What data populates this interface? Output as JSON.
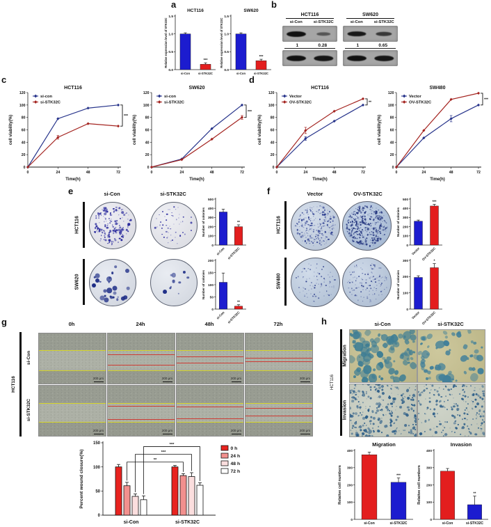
{
  "panels": {
    "a": {
      "letter": "a"
    },
    "b": {
      "letter": "b",
      "groups": [
        {
          "cell_line": "HCT116",
          "lanes": [
            "si-Con",
            "si-STK32C"
          ],
          "quant": [
            "1",
            "0.28"
          ],
          "intensities": [
            1,
            0.3
          ],
          "control_intensities": [
            1,
            0.95
          ]
        },
        {
          "cell_line": "SW620",
          "lanes": [
            "si-Con",
            "si-STK32C"
          ],
          "quant": [
            "1",
            "0.65"
          ],
          "intensities": [
            0.92,
            0.6
          ],
          "control_intensities": [
            1,
            0.95
          ]
        }
      ]
    },
    "c": {
      "letter": "c"
    },
    "d": {
      "letter": "d"
    },
    "e": {
      "letter": "e",
      "col_headers": [
        "si-Con",
        "si-STK32C"
      ],
      "rows": [
        "HCT116",
        "SW620"
      ],
      "dishes": [
        {
          "seed": 11,
          "count": 170,
          "min": 1.2,
          "max": 3.8,
          "bg": "#e6e6ee",
          "dot": "#2a2a9d"
        },
        {
          "seed": 22,
          "count": 55,
          "min": 1,
          "max": 3,
          "bg": "#e6e7ee",
          "dot": "#2a2a9d"
        },
        {
          "seed": 33,
          "count": 26,
          "min": 2.5,
          "max": 9,
          "bg": "#dbe0ea",
          "dot": "#1c2c85"
        },
        {
          "seed": 44,
          "count": 10,
          "min": 2,
          "max": 7,
          "bg": "#dde2eb",
          "dot": "#1c2c85"
        }
      ]
    },
    "f": {
      "letter": "f",
      "col_headers": [
        "Vector",
        "OV-STK32C"
      ],
      "rows": [
        "HCT116",
        "SW480"
      ],
      "dishes": [
        {
          "seed": 55,
          "count": 240,
          "min": 1,
          "max": 2.8,
          "bg": "#bfcde1",
          "dot": "#2b3d8f"
        },
        {
          "seed": 66,
          "count": 400,
          "min": 1,
          "max": 3,
          "bg": "#a9bedb",
          "dot": "#24367f"
        },
        {
          "seed": 77,
          "count": 90,
          "min": 0.8,
          "max": 2.2,
          "bg": "#b7c8de",
          "dot": "#33448f"
        },
        {
          "seed": 88,
          "count": 130,
          "min": 0.8,
          "max": 2.2,
          "bg": "#b4c5dc",
          "dot": "#33448f"
        }
      ]
    },
    "g": {
      "letter": "g",
      "col_headers": [
        "0h",
        "24h",
        "48h",
        "72h"
      ],
      "rows": [
        "si-Con",
        "si-STK32C"
      ],
      "cell_line": "HCT116",
      "scale_label": "200 μm",
      "images": [
        [
          {
            "yellow": [
              0.34,
              0.73
            ]
          },
          {
            "yellow": [
              0.34,
              0.73
            ],
            "red": [
              0.42,
              0.62
            ]
          },
          {
            "yellow": [
              0.34,
              0.73
            ],
            "red": [
              0.46,
              0.58
            ]
          },
          {
            "yellow": [
              0.34,
              0.73
            ],
            "red": [
              0.49,
              0.55
            ]
          }
        ],
        [
          {
            "yellow": [
              0.35,
              0.72
            ]
          },
          {
            "yellow": [
              0.35,
              0.72
            ],
            "red": [
              0.4,
              0.66
            ]
          },
          {
            "yellow": [
              0.35,
              0.72
            ],
            "red": [
              0.42,
              0.65
            ]
          },
          {
            "yellow": [
              0.35,
              0.72
            ],
            "red": [
              0.45,
              0.6
            ]
          }
        ]
      ]
    },
    "h": {
      "letter": "h",
      "col_headers": [
        "si-Con",
        "si-STK32C"
      ],
      "rows": [
        "Migration",
        "Invasion"
      ],
      "cell_line": "HCT116",
      "images": [
        {
          "seed": 101,
          "count": 90,
          "min": 3,
          "max": 13,
          "bg": "#c3bd8c",
          "dot": "#3f7e94"
        },
        {
          "seed": 102,
          "count": 55,
          "min": 3,
          "max": 12,
          "bg": "#c6c08f",
          "dot": "#41809a"
        },
        {
          "seed": 103,
          "count": 250,
          "min": 1.2,
          "max": 4.5,
          "bg": "#c6ccbf",
          "dot": "#2c5d88"
        },
        {
          "seed": 104,
          "count": 195,
          "min": 1,
          "max": 4,
          "bg": "#c8cec1",
          "dot": "#2c5d88"
        }
      ]
    }
  },
  "chart_data": [
    {
      "type": "bar",
      "title": "HCT116",
      "ylabel": "Relative expression level of STK32C",
      "categories": [
        "si-Con",
        "si-STK32C"
      ],
      "values": [
        1.0,
        0.15
      ],
      "errors": [
        0.03,
        0.04
      ],
      "ylim": [
        0,
        1.5
      ],
      "yticks": [
        "0.0",
        "0.5",
        "1.0",
        "1.5"
      ],
      "colors": [
        "#1c1ccf",
        "#e31e1e"
      ],
      "sig": "***",
      "sig_on": 1,
      "ml": 18,
      "ylabel_size": 4.2,
      "cat_size": 4.2,
      "title_size": 6.5
    },
    {
      "type": "bar",
      "title": "SW620",
      "ylabel": "Relative expression level of STK32C",
      "categories": [
        "si-Con",
        "si-STK32C"
      ],
      "values": [
        1.0,
        0.25
      ],
      "errors": [
        0.03,
        0.04
      ],
      "ylim": [
        0,
        1.5
      ],
      "yticks": [
        "0.0",
        "0.5",
        "1.0",
        "1.5"
      ],
      "colors": [
        "#1c1ccf",
        "#e31e1e"
      ],
      "sig": "***",
      "sig_on": 1,
      "ml": 18,
      "ylabel_size": 4.2,
      "cat_size": 4.2,
      "title_size": 6.5
    },
    {
      "type": "line",
      "title": "HCT116",
      "xlabel": "Time(h)",
      "ylabel": "cell viability(%)",
      "x": [
        0,
        24,
        48,
        72
      ],
      "ylim": [
        0,
        120
      ],
      "yticks": [
        0,
        20,
        40,
        60,
        80,
        100,
        120
      ],
      "series": [
        {
          "name": "si-con",
          "color": "#27348b",
          "values": [
            0,
            78,
            95,
            100
          ],
          "errors": [
            0,
            2,
            2,
            2
          ]
        },
        {
          "name": "si-STK32C",
          "color": "#a42420",
          "values": [
            0,
            48,
            70,
            66
          ],
          "errors": [
            0,
            3,
            2,
            2
          ]
        }
      ],
      "sig": "***"
    },
    {
      "type": "line",
      "title": "SW620",
      "xlabel": "Time(h)",
      "ylabel": "cell viability(%)",
      "x": [
        0,
        24,
        48,
        72
      ],
      "ylim": [
        0,
        120
      ],
      "yticks": [
        0,
        20,
        40,
        60,
        80,
        100,
        120
      ],
      "series": [
        {
          "name": "si-con",
          "color": "#27348b",
          "values": [
            0,
            13,
            62,
            100
          ],
          "errors": [
            0,
            2,
            2,
            2
          ]
        },
        {
          "name": "si-STK32C",
          "color": "#a42420",
          "values": [
            0,
            12,
            45,
            80
          ],
          "errors": [
            0,
            2,
            2,
            3
          ]
        }
      ],
      "sig": "***"
    },
    {
      "type": "line",
      "title": "HCT116",
      "xlabel": "Time(h)",
      "ylabel": "cell viability(%)",
      "x": [
        0,
        24,
        48,
        72
      ],
      "ylim": [
        0,
        120
      ],
      "yticks": [
        0,
        20,
        40,
        60,
        80,
        100,
        120
      ],
      "series": [
        {
          "name": "Vector",
          "color": "#27348b",
          "values": [
            0,
            46,
            74,
            100
          ],
          "errors": [
            0,
            3,
            2,
            2
          ]
        },
        {
          "name": "OV-STK32C",
          "color": "#a42420",
          "values": [
            0,
            59,
            90,
            110
          ],
          "errors": [
            0,
            5,
            2,
            2
          ]
        }
      ],
      "sig": "**"
    },
    {
      "type": "line",
      "title": "SW480",
      "xlabel": "Time(h)",
      "ylabel": "cell viability(%)",
      "x": [
        0,
        24,
        48,
        72
      ],
      "ylim": [
        0,
        120
      ],
      "yticks": [
        0,
        20,
        40,
        60,
        80,
        100,
        120
      ],
      "series": [
        {
          "name": "Vector",
          "color": "#27348b",
          "values": [
            0,
            47,
            78,
            100
          ],
          "errors": [
            0,
            2,
            5,
            2
          ]
        },
        {
          "name": "OV-STK32C",
          "color": "#a42420",
          "values": [
            0,
            59,
            109,
            119
          ],
          "errors": [
            0,
            2,
            2,
            2
          ]
        }
      ],
      "sig": "***"
    },
    {
      "type": "bar",
      "ylabel": "Number of colonies",
      "categories": [
        "si-Con",
        "si-STK32C"
      ],
      "values": [
        360,
        200
      ],
      "errors": [
        30,
        20
      ],
      "ylim": [
        0,
        500
      ],
      "yticks": [
        0,
        100,
        200,
        300,
        400,
        500
      ],
      "colors": [
        "#1c1ccf",
        "#e31e1e"
      ],
      "sig": "**",
      "sig_on": 1,
      "ml": 22,
      "ylabel_size": 4.5,
      "rot": true,
      "cat_size": 4.5
    },
    {
      "type": "bar",
      "ylabel": "Number of colonies",
      "categories": [
        "si-Con",
        "si-STK32C"
      ],
      "values": [
        110,
        12
      ],
      "errors": [
        38,
        6
      ],
      "ylim": [
        0,
        200
      ],
      "yticks": [
        0,
        50,
        100,
        150,
        200
      ],
      "colors": [
        "#1c1ccf",
        "#e31e1e"
      ],
      "sig": "**",
      "sig_on": 1,
      "ml": 22,
      "ylabel_size": 4.5,
      "rot": true,
      "cat_size": 4.5
    },
    {
      "type": "bar",
      "ylabel": "Number of colonies",
      "categories": [
        "Vector",
        "OV-STK32C"
      ],
      "values": [
        260,
        425
      ],
      "errors": [
        12,
        18
      ],
      "ylim": [
        0,
        500
      ],
      "yticks": [
        0,
        100,
        200,
        300,
        400,
        500
      ],
      "colors": [
        "#1c1ccf",
        "#e31e1e"
      ],
      "sig": "***",
      "sig_on": 1,
      "ml": 22,
      "ylabel_size": 4.5,
      "rot": true,
      "cat_size": 4.5
    },
    {
      "type": "bar",
      "ylabel": "Number of colonies",
      "categories": [
        "Vector",
        "OV-STK32C"
      ],
      "values": [
        195,
        255
      ],
      "errors": [
        10,
        25
      ],
      "ylim": [
        0,
        300
      ],
      "yticks": [
        0,
        100,
        200,
        300
      ],
      "colors": [
        "#1c1ccf",
        "#e31e1e"
      ],
      "sig": "*",
      "sig_on": 1,
      "ml": 22,
      "ylabel_size": 4.5,
      "rot": true,
      "cat_size": 4.5
    },
    {
      "type": "grouped_bar",
      "ylabel": "Percent wound closure(%)",
      "ylim": [
        0,
        150
      ],
      "yticks": [
        0,
        50,
        100,
        150
      ],
      "groups": [
        "si-Con",
        "si-STK32C"
      ],
      "series_labels": [
        "0 h",
        "24 h",
        "48 h",
        "72 h"
      ],
      "colors": [
        "#e8231f",
        "#f2908e",
        "#fbdede",
        "#ffffff"
      ],
      "values": [
        [
          100,
          61,
          39,
          32
        ],
        [
          100,
          82,
          80,
          62
        ]
      ],
      "errors": [
        [
          5,
          7,
          5,
          8
        ],
        [
          3,
          4,
          8,
          5
        ]
      ],
      "brackets": [
        {
          "bar": 1,
          "label": "**",
          "level": 110
        },
        {
          "bar": 2,
          "label": "***",
          "level": 126
        },
        {
          "bar": 3,
          "label": "***",
          "level": 142
        }
      ],
      "legend_position": "right"
    },
    {
      "type": "bar",
      "title": "Migration",
      "ylabel": "Relative cell numbers",
      "categories": [
        "si-Con",
        "si-STK32C"
      ],
      "values": [
        375,
        215
      ],
      "errors": [
        15,
        25
      ],
      "ylim": [
        0,
        400
      ],
      "yticks": [
        0,
        100,
        200,
        300,
        400
      ],
      "colors": [
        "#e31e1e",
        "#1c1ccf"
      ],
      "sig": "***",
      "sig_on": 1,
      "ml": 26,
      "ylabel_size": 5.5,
      "cat_size": 5,
      "title_size": 7.5
    },
    {
      "type": "bar",
      "title": "Invasion",
      "ylabel": "Relative cell numbers",
      "categories": [
        "si-Con",
        "si-STK32C"
      ],
      "values": [
        280,
        85
      ],
      "errors": [
        15,
        50
      ],
      "ylim": [
        0,
        400
      ],
      "yticks": [
        0,
        100,
        200,
        300,
        400
      ],
      "colors": [
        "#e31e1e",
        "#1c1ccf"
      ],
      "sig": "**",
      "sig_on": 1,
      "ml": 26,
      "ylabel_size": 5.5,
      "cat_size": 5,
      "title_size": 7.5
    }
  ]
}
